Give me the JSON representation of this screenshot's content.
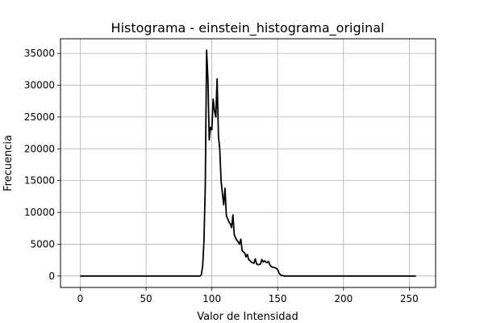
{
  "chart_data": {
    "type": "line",
    "title": "Histograma - einstein_histograma_original",
    "xlabel": "Valor de Intensidad",
    "ylabel": "Frecuencia",
    "xlim": [
      -15,
      270
    ],
    "ylim": [
      -1800,
      37300
    ],
    "x_ticks": [
      0,
      50,
      100,
      150,
      200,
      250
    ],
    "y_ticks": [
      0,
      5000,
      10000,
      15000,
      20000,
      25000,
      30000,
      35000
    ],
    "grid": true,
    "line_color": "#000000",
    "series": [
      {
        "x": [
          0,
          91,
          92,
          93,
          94,
          95,
          96,
          97,
          98,
          99,
          100,
          101,
          102,
          103,
          104,
          105,
          106,
          107,
          108,
          109,
          110,
          111,
          112,
          113,
          114,
          115,
          116,
          117,
          118,
          119,
          120,
          121,
          122,
          123,
          124,
          125,
          126,
          127,
          128,
          129,
          130,
          131,
          132,
          133,
          134,
          135,
          136,
          137,
          138,
          139,
          140,
          141,
          142,
          143,
          144,
          145,
          146,
          147,
          148,
          149,
          150,
          151,
          152,
          153,
          154,
          155,
          156,
          157,
          158,
          159,
          160,
          161,
          162,
          163,
          164,
          165,
          166,
          167,
          168,
          255
        ],
        "values": [
          0,
          0,
          200,
          1500,
          5500,
          14000,
          35500,
          31000,
          21400,
          23400,
          23000,
          27800,
          26000,
          25000,
          31000,
          22000,
          20000,
          15000,
          13000,
          11200,
          13800,
          9500,
          9000,
          8500,
          8200,
          7600,
          9600,
          6500,
          6000,
          5600,
          5400,
          5000,
          5800,
          4000,
          3800,
          3600,
          3000,
          3400,
          2600,
          2400,
          2200,
          2100,
          2000,
          2700,
          1900,
          1800,
          1800,
          1900,
          2600,
          2200,
          2400,
          2200,
          2100,
          2300,
          1800,
          1500,
          1400,
          1350,
          1300,
          1200,
          1000,
          500,
          200,
          100,
          50,
          0,
          0,
          0,
          0,
          0,
          0,
          0,
          0,
          0,
          0,
          0,
          0,
          0,
          0,
          0
        ]
      }
    ]
  }
}
